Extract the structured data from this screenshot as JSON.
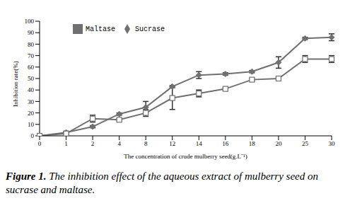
{
  "chart_data": {
    "type": "line",
    "caption": "Figure 1. The inhibition effect of the aqueous extract of mulberry seed on sucrase and maltase.",
    "x_label": "The concentration of crude mulberry seed(g.L⁻¹)",
    "y_label": "Inhibition rate(%)",
    "categories": [
      "0",
      "1",
      "2",
      "4",
      "8",
      "12",
      "14",
      "16",
      "18",
      "20",
      "25",
      "30"
    ],
    "series": [
      {
        "name": "Sucrase",
        "color": "#707070",
        "marker": "diamond",
        "values": [
          0,
          3,
          8,
          19,
          25,
          43,
          53,
          54,
          56,
          64,
          85,
          86
        ],
        "errors": [
          0,
          1,
          1,
          1,
          5,
          1,
          3,
          1,
          1,
          5,
          1,
          3
        ]
      },
      {
        "name": "Maltase",
        "color": "#707070",
        "marker": "square",
        "values": [
          0,
          2,
          15,
          14,
          20,
          33,
          37,
          41,
          49,
          50,
          67,
          67
        ],
        "errors": [
          0,
          1,
          3,
          1,
          3,
          10,
          3,
          1,
          1,
          1,
          3,
          3
        ]
      }
    ],
    "ylim": [
      0,
      100
    ],
    "yticks": [
      0,
      10,
      20,
      30,
      40,
      50,
      60,
      70,
      80,
      90,
      100
    ],
    "legend": "top",
    "grid": false
  }
}
